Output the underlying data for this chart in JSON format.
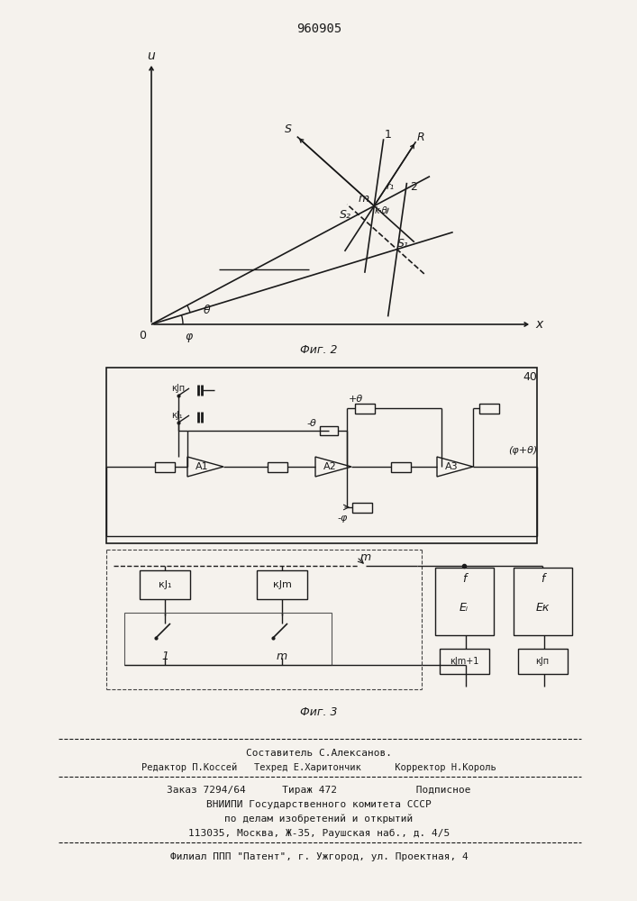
{
  "patent_number": "960905",
  "bg_color": "#f5f2ed",
  "line_color": "#1a1a1a",
  "footer_line1": "Составитель С.Алексанов.",
  "footer_line2": "Редактор П.Коссей   Техред Е.Харитончик      Корректор Н.Король",
  "footer_line3": "Заказ 7294/64      Тираж 472             Подписное",
  "footer_line4": "ВНИИПИ Государственного комитета СССР",
  "footer_line5": "по делам изобретений и открытий",
  "footer_line6": "113035, Москва, Ж-35, Раушская наб., д. 4/5",
  "footer_line7": "Филиал ППП \"Патент\", г. Ужгород, ул. Проектная, 4"
}
